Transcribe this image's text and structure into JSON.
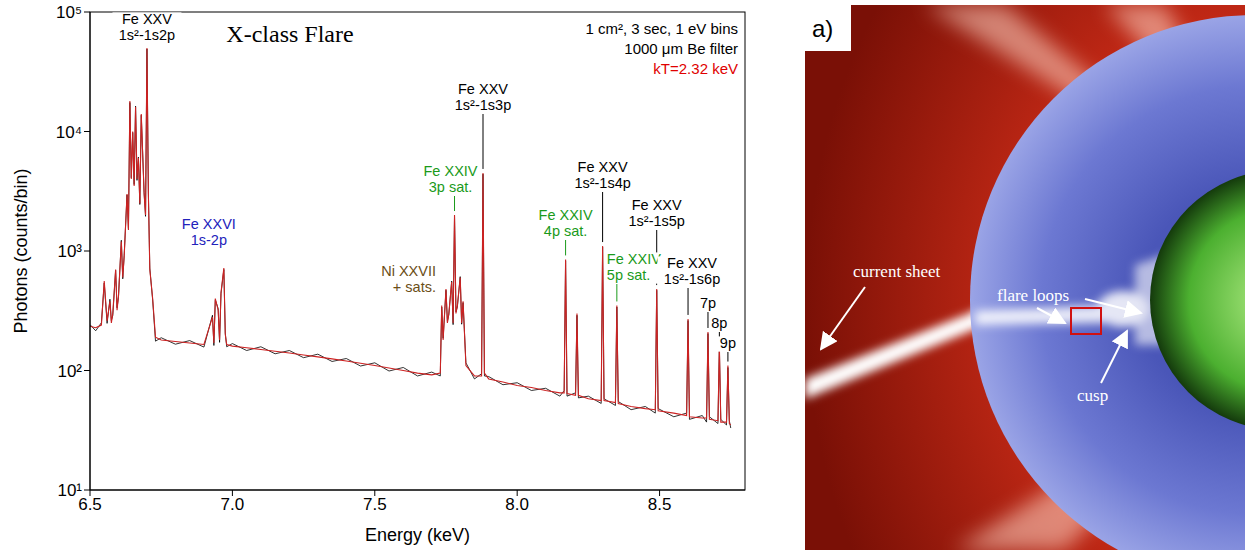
{
  "chart_data": {
    "type": "line",
    "title": "X-class Flare",
    "notes": [
      "1 cm², 3 sec, 1 eV bins",
      "1000 μm Be filter"
    ],
    "fit_label": {
      "text": "kT=2.32 keV",
      "color": "#e00000"
    },
    "x_label": "Energy (keV)",
    "y_label": "Photons (counts/bin)",
    "log": "y",
    "grid": false,
    "xlim": [
      6.5,
      8.8
    ],
    "xticks": [
      6.5,
      {
        "value": 7,
        "label": "7.0"
      },
      7.5,
      {
        "value": 8,
        "label": "8.0"
      },
      8.5
    ],
    "ylim": [
      10,
      100000
    ],
    "yticks": [
      {
        "value": 10,
        "label": "10¹"
      },
      {
        "value": 100,
        "label": "10²"
      },
      {
        "value": 1000,
        "label": "10³"
      },
      {
        "value": 10000,
        "label": "10⁴"
      },
      {
        "value": 100000,
        "label": "10⁵"
      }
    ],
    "x": [
      6.5,
      6.52,
      6.54,
      6.55,
      6.56,
      6.57,
      6.575,
      6.58,
      6.59,
      6.595,
      6.6,
      6.61,
      6.615,
      6.62,
      6.63,
      6.635,
      6.64,
      6.645,
      6.65,
      6.655,
      6.66,
      6.665,
      6.67,
      6.675,
      6.68,
      6.69,
      6.695,
      6.7,
      6.705,
      6.71,
      6.72,
      6.73,
      6.75,
      6.8,
      6.85,
      6.9,
      6.93,
      6.935,
      6.94,
      6.95,
      6.955,
      6.96,
      6.97,
      6.975,
      6.98,
      7.0,
      7.05,
      7.1,
      7.15,
      7.2,
      7.25,
      7.3,
      7.35,
      7.4,
      7.45,
      7.5,
      7.55,
      7.6,
      7.65,
      7.7,
      7.73,
      7.735,
      7.74,
      7.75,
      7.755,
      7.76,
      7.77,
      7.775,
      7.78,
      7.785,
      7.79,
      7.8,
      7.805,
      7.81,
      7.82,
      7.85,
      7.875,
      7.88,
      7.885,
      7.9,
      7.95,
      8.0,
      8.05,
      8.1,
      8.15,
      8.165,
      8.17,
      8.175,
      8.205,
      8.21,
      8.215,
      8.25,
      8.295,
      8.3,
      8.305,
      8.345,
      8.35,
      8.355,
      8.4,
      8.45,
      8.485,
      8.49,
      8.495,
      8.55,
      8.595,
      8.6,
      8.605,
      8.65,
      8.665,
      8.67,
      8.675,
      8.705,
      8.71,
      8.715,
      8.735,
      8.74,
      8.745,
      8.75
    ],
    "series": [
      {
        "color": "#000000",
        "values": [
          242,
          215,
          251,
          540,
          248,
          395,
          262,
          288,
          690,
          335,
          410,
          1230,
          585,
          920,
          2950,
          1540,
          17500,
          4100,
          9800,
          3600,
          16300,
          3900,
          6100,
          2450,
          13700,
          3100,
          1950,
          49000,
          3050,
          720,
          390,
          176,
          188,
          166,
          178,
          157,
          290,
          162,
          390,
          330,
          172,
          440,
          700,
          206,
          158,
          168,
          147,
          158,
          138,
          147,
          128,
          137,
          119,
          126,
          109,
          116,
          99,
          106,
          90,
          97,
          90,
          340,
          186,
          470,
          258,
          292,
          560,
          242,
          1960,
          310,
          340,
          610,
          244,
          370,
          116,
          85,
          94,
          4400,
          90,
          89,
          76,
          79,
          68,
          71,
          61,
          68,
          830,
          61,
          65,
          290,
          59,
          61,
          53,
          1080,
          58,
          51,
          340,
          55,
          47,
          50,
          44,
          470,
          48,
          41,
          44,
          262,
          39,
          42,
          37,
          204,
          41,
          36,
          155,
          39,
          35,
          106,
          38,
          33
        ]
      },
      {
        "color": "#cc2222",
        "values": [
          235,
          228,
          240,
          560,
          260,
          380,
          250,
          300,
          700,
          320,
          420,
          1200,
          600,
          900,
          3000,
          1500,
          18000,
          4000,
          10000,
          3500,
          16000,
          4000,
          6000,
          2500,
          14000,
          3000,
          2000,
          50000,
          3000,
          700,
          400,
          190,
          180,
          175,
          170,
          165,
          280,
          170,
          400,
          320,
          180,
          450,
          720,
          200,
          165,
          160,
          155,
          150,
          145,
          140,
          135,
          130,
          125,
          120,
          115,
          110,
          105,
          100,
          95,
          92,
          95,
          350,
          180,
          480,
          250,
          300,
          550,
          250,
          2000,
          300,
          350,
          600,
          250,
          380,
          110,
          90,
          90,
          4500,
          95,
          85,
          80,
          75,
          72,
          68,
          65,
          65,
          850,
          64,
          62,
          300,
          62,
          58,
          56,
          1100,
          56,
          54,
          350,
          53,
          50,
          48,
          47,
          480,
          46,
          44,
          42,
          270,
          41,
          40,
          40,
          210,
          39,
          38,
          160,
          37,
          37,
          110,
          36,
          35
        ]
      }
    ],
    "annotations": [
      {
        "text": [
          "Fe XXV",
          "1s²-1s2p"
        ],
        "x": 6.7,
        "color": "#000000"
      },
      {
        "text": [
          "Fe XXVI",
          "1s-2p"
        ],
        "x": 6.97,
        "color": "#2222bb"
      },
      {
        "text": [
          "Ni XXVII",
          "+ sats."
        ],
        "x": 7.75,
        "color": "#6b4e16"
      },
      {
        "text": [
          "Fe XXIV",
          "3p sat."
        ],
        "x": 7.78,
        "color": "#1a9a1a"
      },
      {
        "text": [
          "Fe XXV",
          "1s²-1s3p"
        ],
        "x": 7.88,
        "color": "#000000"
      },
      {
        "text": [
          "Fe XXIV",
          "4p sat."
        ],
        "x": 8.17,
        "color": "#1a9a1a"
      },
      {
        "text": [
          "Fe XXV",
          "1s²-1s4p"
        ],
        "x": 8.3,
        "color": "#000000"
      },
      {
        "text": [
          "Fe XXIV",
          "5p sat."
        ],
        "x": 8.35,
        "color": "#1a9a1a"
      },
      {
        "text": [
          "Fe XXV",
          "1s²-1s5p"
        ],
        "x": 8.49,
        "color": "#000000"
      },
      {
        "text": [
          "Fe XXV",
          "1s²-1s6p"
        ],
        "x": 8.6,
        "color": "#000000"
      },
      {
        "text": [
          "7p"
        ],
        "x": 8.67,
        "color": "#000000"
      },
      {
        "text": [
          "8p"
        ],
        "x": 8.71,
        "color": "#000000"
      },
      {
        "text": [
          "9p"
        ],
        "x": 8.74,
        "color": "#000000"
      }
    ]
  },
  "image": {
    "panel_label": "a)",
    "labels": {
      "current_sheet": "current sheet",
      "flare_loops": "flare loops",
      "cusp": "cusp"
    }
  }
}
